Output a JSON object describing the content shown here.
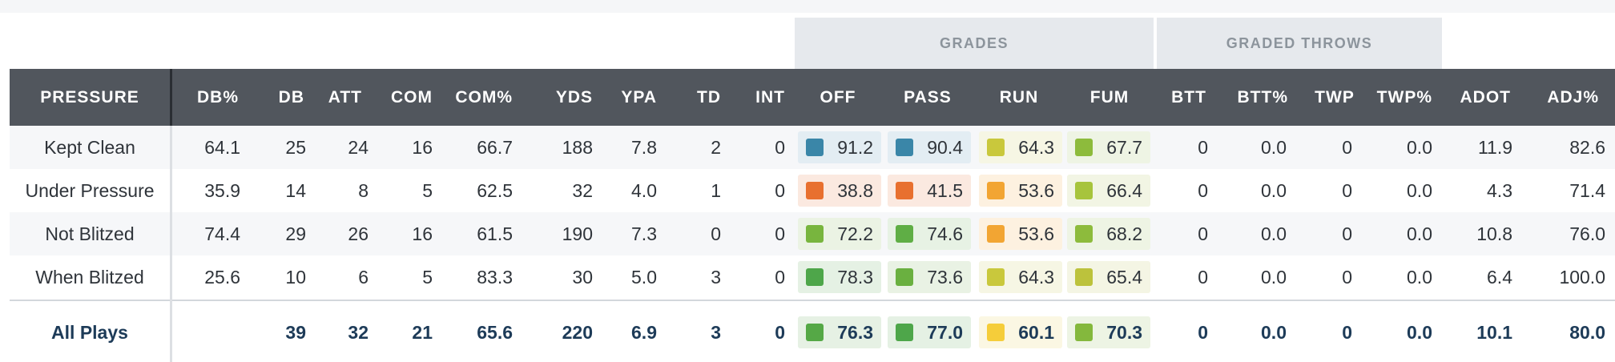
{
  "group_headers": {
    "grades": "GRADES",
    "graded_throws": "GRADED THROWS"
  },
  "columns": [
    "PRESSURE",
    "DB%",
    "DB",
    "ATT",
    "COM",
    "COM%",
    "YDS",
    "YPA",
    "TD",
    "INT",
    "OFF",
    "PASS",
    "RUN",
    "FUM",
    "BTT",
    "BTT%",
    "TWP",
    "TWP%",
    "ADOT",
    "ADJ%"
  ],
  "rows": [
    {
      "label": "Kept Clean",
      "stats": [
        "64.1",
        "25",
        "24",
        "16",
        "66.7",
        "188",
        "7.8",
        "2",
        "0"
      ],
      "grades": [
        {
          "value": "91.2",
          "color": "#3a86a8",
          "bg": "#e3edf3"
        },
        {
          "value": "90.4",
          "color": "#3a86a8",
          "bg": "#e3edf3"
        },
        {
          "value": "64.3",
          "color": "#c9c83c",
          "bg": "#f6f6e4"
        },
        {
          "value": "67.7",
          "color": "#8dbb3c",
          "bg": "#eef4e4"
        }
      ],
      "throws": [
        "0",
        "0.0",
        "0",
        "0.0",
        "11.9",
        "82.6"
      ]
    },
    {
      "label": "Under Pressure",
      "stats": [
        "35.9",
        "14",
        "8",
        "5",
        "62.5",
        "32",
        "4.0",
        "1",
        "0"
      ],
      "grades": [
        {
          "value": "38.8",
          "color": "#e8702f",
          "bg": "#fbe9e0"
        },
        {
          "value": "41.5",
          "color": "#e8702f",
          "bg": "#fbe9e0"
        },
        {
          "value": "53.6",
          "color": "#f2a533",
          "bg": "#fdf1e0"
        },
        {
          "value": "66.4",
          "color": "#a7c43c",
          "bg": "#f2f5e4"
        }
      ],
      "throws": [
        "0",
        "0.0",
        "0",
        "0.0",
        "4.3",
        "71.4"
      ]
    },
    {
      "label": "Not Blitzed",
      "stats": [
        "74.4",
        "29",
        "26",
        "16",
        "61.5",
        "190",
        "7.3",
        "0",
        "0"
      ],
      "grades": [
        {
          "value": "72.2",
          "color": "#78b53e",
          "bg": "#ebf3e4"
        },
        {
          "value": "74.6",
          "color": "#5fae45",
          "bg": "#e7f2e4"
        },
        {
          "value": "53.6",
          "color": "#f2a533",
          "bg": "#fdf1e0"
        },
        {
          "value": "68.2",
          "color": "#8dbb3c",
          "bg": "#eef4e4"
        }
      ],
      "throws": [
        "0",
        "0.0",
        "0",
        "0.0",
        "10.8",
        "76.0"
      ]
    },
    {
      "label": "When Blitzed",
      "stats": [
        "25.6",
        "10",
        "6",
        "5",
        "83.3",
        "30",
        "5.0",
        "3",
        "0"
      ],
      "grades": [
        {
          "value": "78.3",
          "color": "#4ea64a",
          "bg": "#e5f1e4"
        },
        {
          "value": "73.6",
          "color": "#6ab040",
          "bg": "#e9f2e4"
        },
        {
          "value": "64.3",
          "color": "#c9c83c",
          "bg": "#f6f6e4"
        },
        {
          "value": "65.4",
          "color": "#bcc23c",
          "bg": "#f4f5e4"
        }
      ],
      "throws": [
        "0",
        "0.0",
        "0",
        "0.0",
        "6.4",
        "100.0"
      ]
    }
  ],
  "total": {
    "label": "All Plays",
    "stats": [
      "",
      "39",
      "32",
      "21",
      "65.6",
      "220",
      "6.9",
      "3",
      "0"
    ],
    "grades": [
      {
        "value": "76.3",
        "color": "#55a846",
        "bg": "#e6f1e4"
      },
      {
        "value": "77.0",
        "color": "#4ea64a",
        "bg": "#e5f1e4"
      },
      {
        "value": "60.1",
        "color": "#f5cd3a",
        "bg": "#fbf7e3"
      },
      {
        "value": "70.3",
        "color": "#84b83d",
        "bg": "#edf4e4"
      }
    ],
    "throws": [
      "0",
      "0.0",
      "0",
      "0.0",
      "10.1",
      "80.0"
    ]
  }
}
